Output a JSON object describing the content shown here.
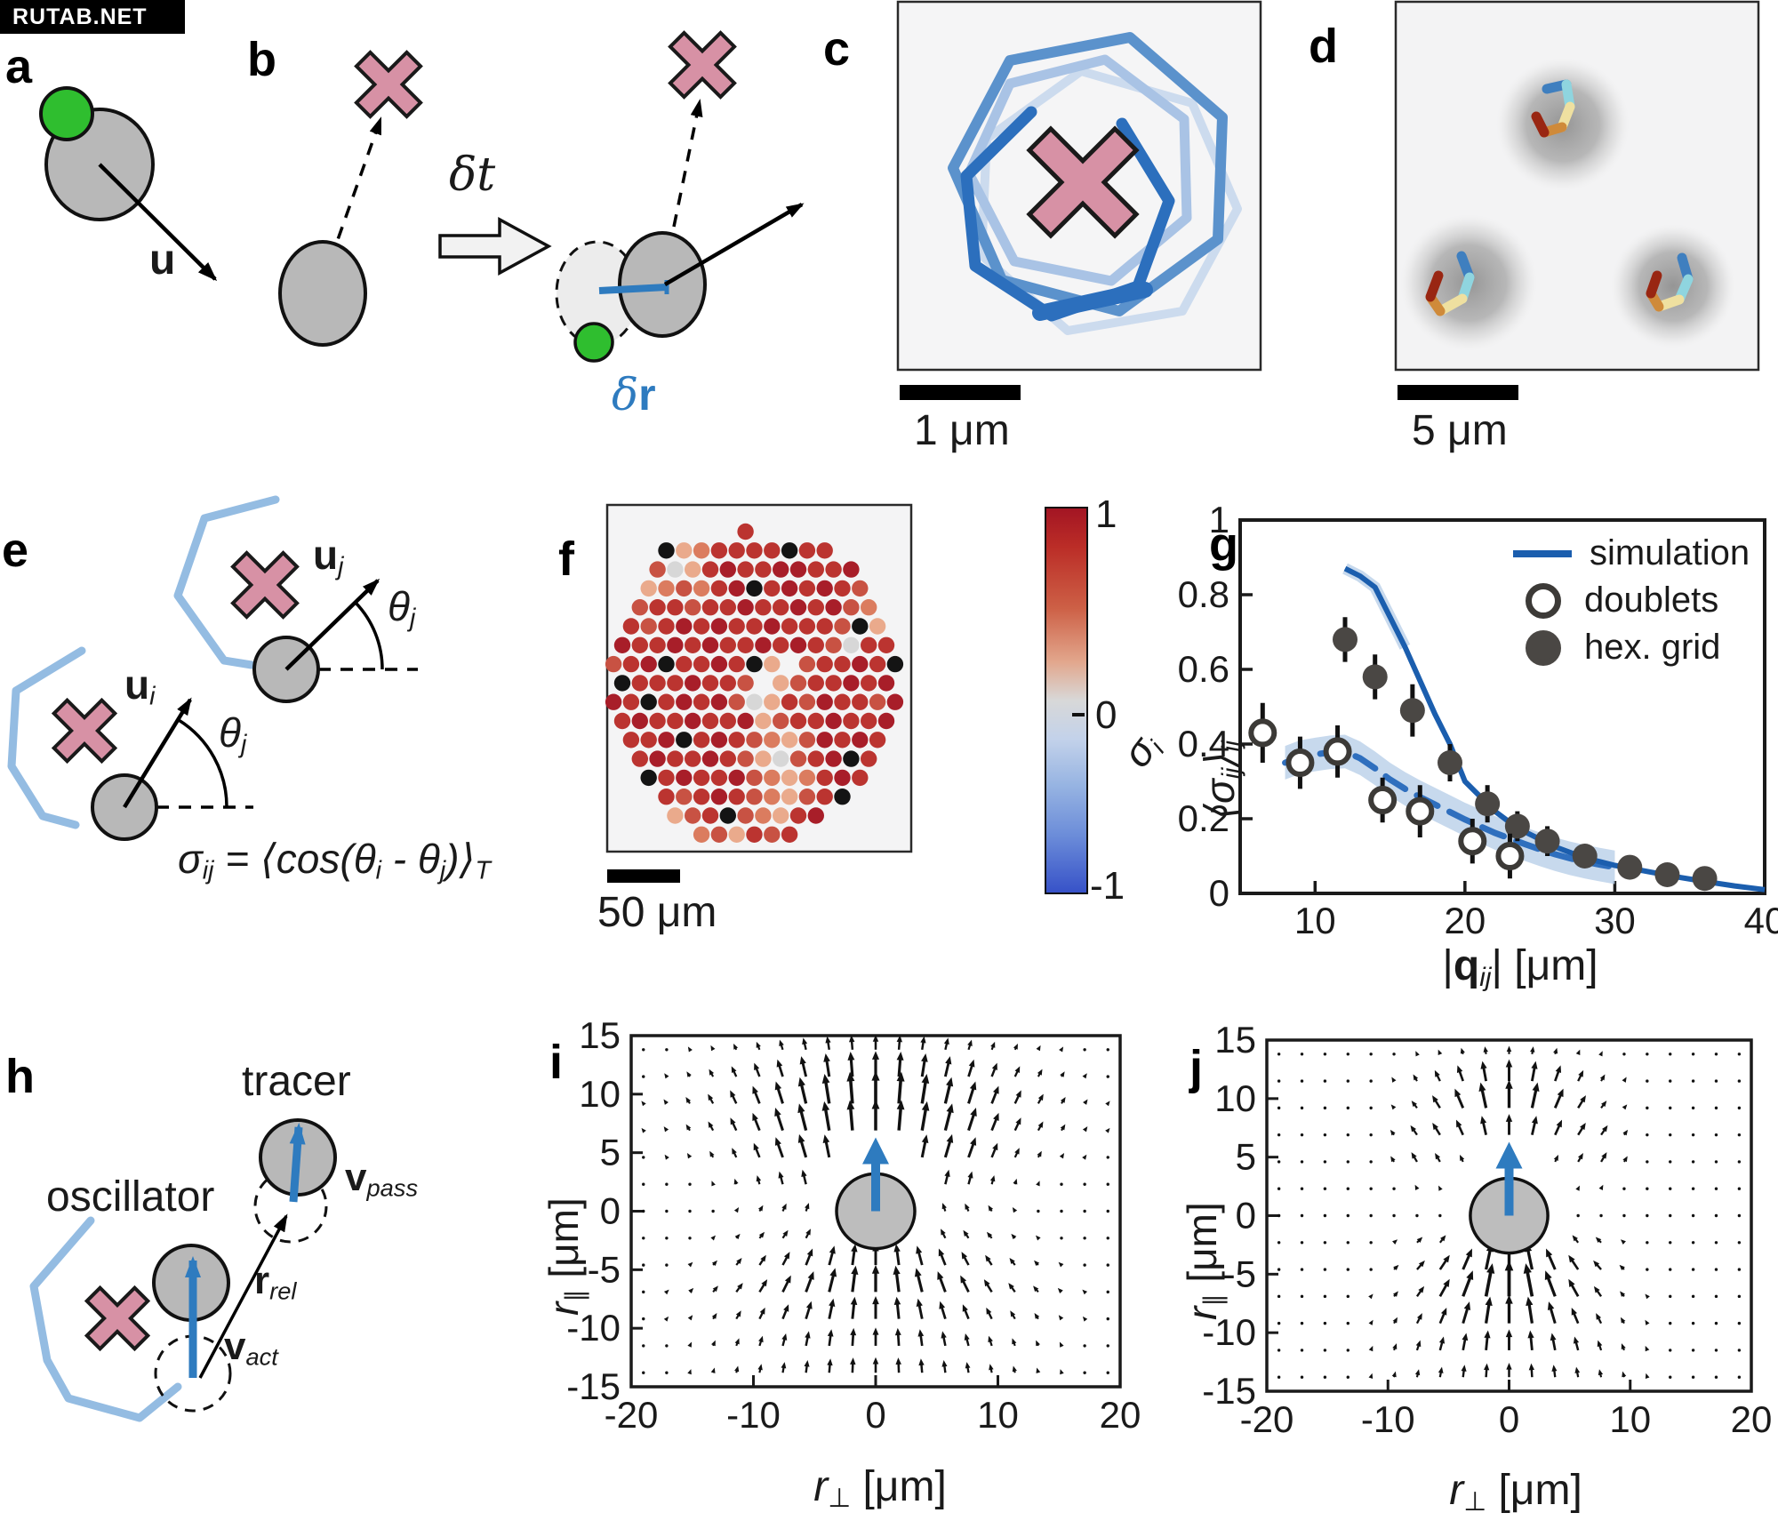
{
  "watermark": "RUTAB.NET",
  "colors": {
    "accent_blue": "#2e7bbf",
    "dark_blue_line": "#1b5eae",
    "dashed_blue": "#2f6fbe",
    "band_blue": "#b9cfe9",
    "pink_x": "#d791a5",
    "gray_particle": "#b8b8b8",
    "green_marker": "#2fbe2f",
    "traj_light_blue": "#94bce2",
    "marker_gray": "#4a4744"
  },
  "panels": {
    "a": {
      "letter": "a",
      "u": "u"
    },
    "b": {
      "letter": "b",
      "dt": "δt",
      "dr_d": "δ",
      "dr_r": "r"
    },
    "c": {
      "letter": "c",
      "scalebar": "1 μm"
    },
    "d": {
      "letter": "d",
      "scalebar": "5 μm"
    },
    "e": {
      "letter": "e",
      "uj": "u",
      "uj_sub": "j",
      "ui": "u",
      "ui_sub": "i",
      "theta_u": "θ",
      "theta_u_sub": "j",
      "theta_l": "θ",
      "theta_l_sub": "j",
      "eq": {
        "s": "σ",
        "s_sub": "ij",
        "mid": " = ⟨cos(",
        "t1": "θ",
        "t1_sub": "i",
        "minus": " - ",
        "t2": "θ",
        "t2_sub": "j",
        "close": ")⟩",
        "T": "T"
      }
    },
    "f": {
      "letter": "f",
      "scalebar": "50 μm",
      "sigma": "σ",
      "sigma_sub": "i"
    },
    "g": {
      "letter": "g",
      "ylabel": {
        "open": "⟨",
        "sigma": "σ",
        "sub1": "ij",
        "close": "⟩",
        "sub2": "ij"
      },
      "xlabel": {
        "bar1": "|",
        "q": "q",
        "sub": "ij",
        "bar2": "|",
        "unit": " [μm]"
      }
    },
    "h": {
      "letter": "h",
      "tracer": "tracer",
      "oscillator": "oscillator",
      "v1": "v",
      "v1_sub": "pass",
      "r": "r",
      "r_sub": "rel",
      "v2": "v",
      "v2_sub": "act"
    },
    "i": {
      "letter": "i",
      "xlabel": {
        "base": "r",
        "sub": "⊥",
        "unit": " [μm]"
      },
      "ylabel": {
        "base": "r",
        "sub": "∥",
        "unit": " [μm]"
      }
    },
    "j": {
      "letter": "j",
      "xlabel": {
        "base": "r",
        "sub": "⊥",
        "unit": " [μm]"
      },
      "ylabel": {
        "base": "r",
        "sub": "∥",
        "unit": " [μm]"
      }
    }
  },
  "chart_data": [
    {
      "id": "g",
      "type": "line+scatter",
      "xlabel": "|q_ij| [μm]",
      "ylabel": "⟨σ_ij⟩_ij",
      "xlim": [
        5,
        40
      ],
      "ylim": [
        0,
        1
      ],
      "xticks": [
        10,
        20,
        30,
        40
      ],
      "yticks": [
        0,
        0.2,
        0.4,
        0.6,
        0.8,
        1
      ],
      "legend_position": "top-right",
      "grid": false,
      "series": [
        {
          "name": "simulation",
          "style": "solid_line",
          "color": "#1b5eae",
          "points": [
            [
              12,
              0.87
            ],
            [
              13,
              0.85
            ],
            [
              14,
              0.82
            ],
            [
              15,
              0.74
            ],
            [
              16,
              0.66
            ],
            [
              17,
              0.57
            ],
            [
              18,
              0.48
            ],
            [
              19,
              0.4
            ],
            [
              20,
              0.3
            ],
            [
              21,
              0.26
            ],
            [
              22,
              0.22
            ],
            [
              23,
              0.19
            ],
            [
              24,
              0.165
            ],
            [
              25,
              0.145
            ],
            [
              26,
              0.125
            ],
            [
              27,
              0.11
            ],
            [
              28,
              0.095
            ],
            [
              29,
              0.085
            ],
            [
              30,
              0.075
            ],
            [
              32,
              0.06
            ],
            [
              34,
              0.045
            ],
            [
              36,
              0.032
            ],
            [
              38,
              0.02
            ],
            [
              40,
              0.01
            ]
          ]
        },
        {
          "name": "simulation (doublet, dashed)",
          "style": "dashed_line_band",
          "color": "#2f6fbe",
          "band_color": "#b9cfe9",
          "band_halfwidth": 0.045,
          "points": [
            [
              8,
              0.35
            ],
            [
              9,
              0.365
            ],
            [
              10,
              0.372
            ],
            [
              11,
              0.378
            ],
            [
              12,
              0.38
            ],
            [
              13,
              0.362
            ],
            [
              14,
              0.335
            ],
            [
              15,
              0.305
            ],
            [
              16,
              0.28
            ],
            [
              17,
              0.258
            ],
            [
              18,
              0.238
            ],
            [
              19,
              0.218
            ],
            [
              20,
              0.198
            ],
            [
              21,
              0.18
            ],
            [
              22,
              0.162
            ],
            [
              23,
              0.147
            ],
            [
              24,
              0.132
            ],
            [
              25,
              0.118
            ],
            [
              26,
              0.105
            ],
            [
              27,
              0.094
            ],
            [
              28,
              0.085
            ],
            [
              29,
              0.077
            ],
            [
              30,
              0.07
            ]
          ]
        },
        {
          "name": "doublets",
          "style": "open_circle",
          "color": "#3c3a37",
          "points": [
            [
              6.5,
              0.43
            ],
            [
              9,
              0.35
            ],
            [
              11.5,
              0.38
            ],
            [
              14.5,
              0.25
            ],
            [
              17,
              0.22
            ],
            [
              20.5,
              0.14
            ],
            [
              23,
              0.1
            ]
          ],
          "yerr": [
            0.08,
            0.07,
            0.07,
            0.06,
            0.07,
            0.06,
            0.06
          ]
        },
        {
          "name": "hex. grid",
          "style": "filled_circle",
          "color": "#4a4744",
          "points": [
            [
              12,
              0.68
            ],
            [
              14,
              0.58
            ],
            [
              16.5,
              0.49
            ],
            [
              19,
              0.35
            ],
            [
              21.5,
              0.24
            ],
            [
              23.5,
              0.18
            ],
            [
              25.5,
              0.14
            ],
            [
              28,
              0.1
            ],
            [
              31,
              0.07
            ],
            [
              33.5,
              0.05
            ],
            [
              36,
              0.04
            ]
          ],
          "yerr": [
            0.06,
            0.06,
            0.07,
            0.05,
            0.05,
            0.04,
            0.04,
            0.03,
            0.02,
            0.02,
            0.02
          ]
        }
      ]
    },
    {
      "id": "f",
      "type": "heatmap_hexgrid",
      "value_label": "σ_i",
      "colorbar": {
        "min": -1,
        "max": 1,
        "ticks": [
          "1",
          "0",
          "-1"
        ]
      },
      "palette": {
        "K": "#141414",
        "D": "#a81e29",
        "R": "#bb3430",
        "S": "#c85243",
        "L": "#db7c5f",
        "P": "#eaaa8c",
        "G": "#d7d7d7"
      },
      "rows": [
        {
          "offset": 7.0,
          "cells": "R"
        },
        {
          "offset": 2.5,
          "cells": "KPLRRRRKRR"
        },
        {
          "offset": 2.0,
          "cells": "SGPRDRRDDRRD"
        },
        {
          "offset": 1.5,
          "cells": "PLSLRDKRDRDRS"
        },
        {
          "offset": 1.0,
          "cells": "SRRSRRDRRDRDSL"
        },
        {
          "offset": 0.5,
          "cells": "RSRDRDRRDRRRSKP"
        },
        {
          "offset": 0.0,
          "cells": "DRRDRDRRDRDRSGRR"
        },
        {
          "offset": -0.5,
          "cells": "SRDKRRDRKP.SRRDRK"
        },
        {
          "offset": 0.0,
          "cells": "KRRRDRRS.PSRRDRD"
        },
        {
          "offset": -0.5,
          "cells": "DRKRDRDSGPRSDRRSD"
        },
        {
          "offset": 0.0,
          "cells": "RDRRDRRDPSRRDRRD"
        },
        {
          "offset": 0.5,
          "cells": "RRDKRDRSLPSDRDR"
        },
        {
          "offset": 1.0,
          "cells": "RDRRDRSPGSRDKR"
        },
        {
          "offset": 1.5,
          "cells": "KRDRRDSLPLRDR"
        },
        {
          "offset": 2.5,
          "cells": "RSRDRSLPSRK"
        },
        {
          "offset": 3.0,
          "cells": "PSRKSLPRD"
        },
        {
          "offset": 4.5,
          "cells": "LSPRSR"
        }
      ]
    },
    {
      "id": "i",
      "type": "quiver",
      "xlabel": "r⊥ [μm]",
      "ylabel": "r∥ [μm]",
      "xlim": [
        -20,
        20
      ],
      "ylim": [
        -15,
        15
      ],
      "xticks": [
        -20,
        -10,
        0,
        10,
        20
      ],
      "yticks": [
        15,
        10,
        5,
        0,
        -5,
        -10,
        -15
      ],
      "grid": {
        "x0": -19,
        "x1": 19,
        "nx": 21,
        "y0": -13.8,
        "y1": 13.8,
        "ny": 13
      },
      "particle": {
        "radius_um": 3.2,
        "heading": "up",
        "arrow_tip_um": 6.3
      },
      "mask": {
        "r": 4.6,
        "arrow_half_width": 2.6,
        "arrow_y0": 2.4,
        "arrow_y1": 6.4
      },
      "field_model": {
        "lobes": [
          {
            "amp": 7.0,
            "cx": 0,
            "cy": 8.5,
            "sx": 8.5,
            "sy": 4.2,
            "fan": 0.35
          },
          {
            "amp": 5.0,
            "cx": 0,
            "cy": -6.2,
            "sx": 7.5,
            "sy": 2.9,
            "fan": -0.55
          },
          {
            "amp": 2.2,
            "cx": 0,
            "cy": -11.5,
            "sx": 9.0,
            "sy": 3.4,
            "fan": -0.25
          },
          {
            "amp": 1.4,
            "cx": 0,
            "cy": -14.2,
            "sx": 9.0,
            "sy": 2.4,
            "fan": -0.1
          },
          {
            "amp": 1.6,
            "cx": -6.5,
            "cy": 3.8,
            "sx": 2.4,
            "sy": 2.2,
            "ang": 115
          },
          {
            "amp": 1.6,
            "cx": 6.5,
            "cy": 3.8,
            "sx": 2.4,
            "sy": 2.2,
            "ang": 65
          },
          {
            "amp": 1.1,
            "cx": -8,
            "cy": -0.5,
            "sx": 3.5,
            "sy": 1.6,
            "ang": 25
          },
          {
            "amp": 1.1,
            "cx": 8,
            "cy": -0.5,
            "sx": 3.5,
            "sy": 1.6,
            "ang": 155
          }
        ]
      }
    },
    {
      "id": "j",
      "type": "quiver",
      "xlabel": "r⊥ [μm]",
      "ylabel": "r∥ [μm]",
      "xlim": [
        -20,
        20
      ],
      "ylim": [
        -15,
        15
      ],
      "xticks": [
        -20,
        -10,
        0,
        10,
        20
      ],
      "yticks": [
        15,
        10,
        5,
        0,
        -5,
        -10,
        -15
      ],
      "grid": {
        "x0": -19,
        "x1": 19,
        "nx": 21,
        "y0": -13.8,
        "y1": 13.8,
        "ny": 13
      },
      "particle": {
        "radius_um": 3.2,
        "heading": "up",
        "arrow_tip_um": 6.3
      },
      "mask": {
        "r": 4.5,
        "arrow_half_width": 2.6,
        "arrow_y0": 2.4,
        "arrow_y1": 6.0
      },
      "field_model": {
        "lobes": [
          {
            "amp": 6.0,
            "cx": 0,
            "cy": 8.8,
            "sx": 4.2,
            "sy": 2.7,
            "fan": 0.5
          },
          {
            "amp": 1.3,
            "cx": 0,
            "cy": 12.0,
            "sx": 8.0,
            "sy": 1.8,
            "fan": 0.3
          },
          {
            "amp": 7.0,
            "cx": 0,
            "cy": -6.0,
            "sx": 4.4,
            "sy": 2.7,
            "fan": -0.5
          },
          {
            "amp": 3.0,
            "cx": 0,
            "cy": -10.5,
            "sx": 6.5,
            "sy": 3.0,
            "fan": -0.3
          },
          {
            "amp": 1.5,
            "cx": 0,
            "cy": -13.5,
            "sx": 8.0,
            "sy": 2.2,
            "fan": -0.12
          },
          {
            "amp": 2.1,
            "cx": -7.5,
            "cy": 5.0,
            "sx": 2.1,
            "sy": 2.1,
            "ang": 118
          },
          {
            "amp": 2.1,
            "cx": 7.5,
            "cy": 5.0,
            "sx": 2.1,
            "sy": 2.1,
            "ang": 62
          },
          {
            "amp": 1.0,
            "cx": -7.5,
            "cy": -3.0,
            "sx": 2.4,
            "sy": 1.8,
            "ang": 40
          },
          {
            "amp": 1.0,
            "cx": 7.5,
            "cy": -3.0,
            "sx": 2.4,
            "sy": 1.8,
            "ang": 140
          }
        ]
      }
    }
  ]
}
